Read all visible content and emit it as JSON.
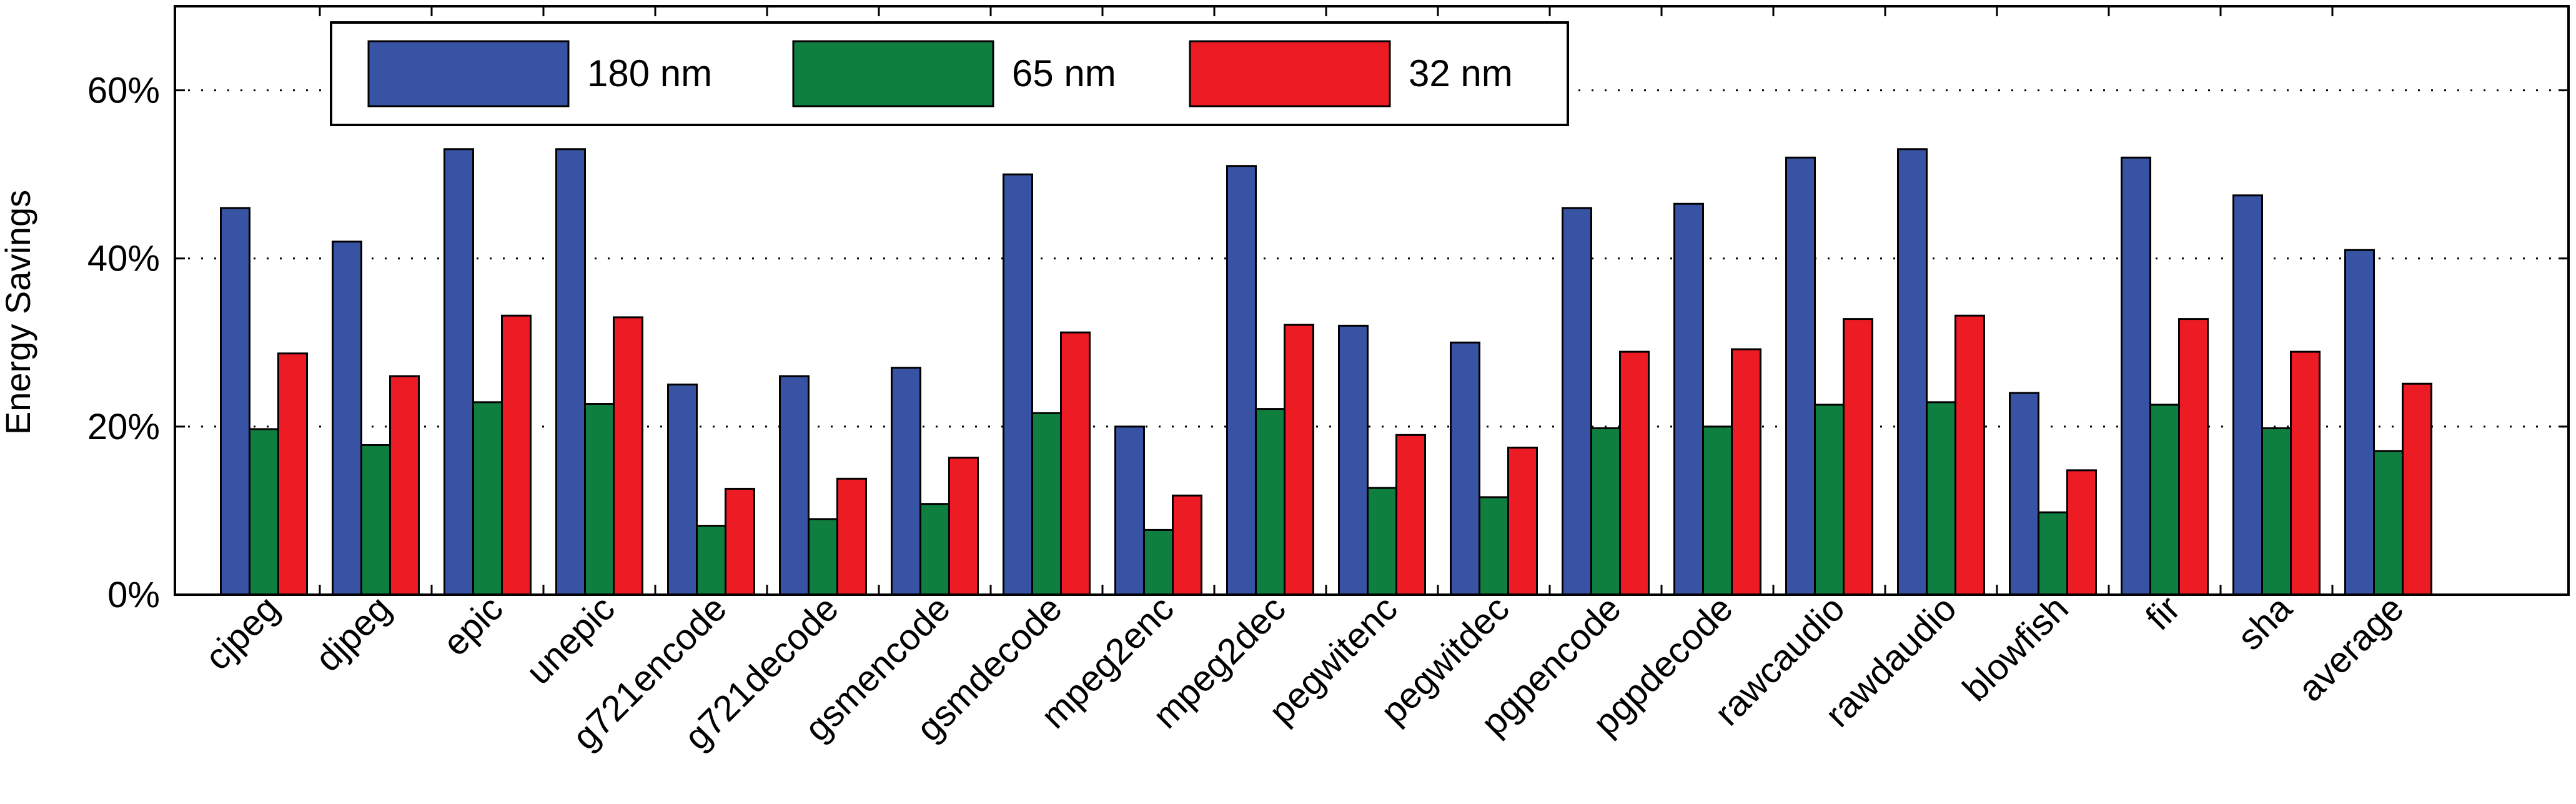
{
  "chart_data": {
    "type": "bar",
    "title": "",
    "xlabel": "",
    "ylabel": "Energy Savings",
    "ylim": [
      0,
      70
    ],
    "yticks": [
      0,
      20,
      40,
      60
    ],
    "ytick_labels": [
      "0%",
      "20%",
      "40%",
      "60%"
    ],
    "grid": "horizontal dotted",
    "legend_position": "top-left",
    "categories": [
      "cjpeg",
      "djpeg",
      "epic",
      "unepic",
      "g721encode",
      "g721decode",
      "gsmencode",
      "gsmdecode",
      "mpeg2enc",
      "mpeg2dec",
      "pegwitenc",
      "pegwitdec",
      "pgpencode",
      "pgpdecode",
      "rawcaudio",
      "rawdaudio",
      "blowfish",
      "fir",
      "sha",
      "average"
    ],
    "series": [
      {
        "name": "180 nm",
        "color": "#3953a4",
        "values": [
          46,
          42,
          53,
          53,
          25,
          26,
          27,
          50,
          20,
          51,
          32,
          30,
          46,
          46.5,
          52,
          53,
          24,
          52,
          47.5,
          41
        ]
      },
      {
        "name": "65 nm",
        "color": "#0f7f3f",
        "values": [
          19.7,
          17.8,
          22.9,
          22.7,
          8.2,
          9,
          10.8,
          21.6,
          7.7,
          22.1,
          12.7,
          11.6,
          19.8,
          20,
          22.6,
          22.9,
          9.8,
          22.6,
          19.8,
          17.1
        ]
      },
      {
        "name": "32 nm",
        "color": "#ed1c24",
        "values": [
          28.7,
          26,
          33.2,
          33,
          12.6,
          13.8,
          16.3,
          31.2,
          11.8,
          32.1,
          19,
          17.5,
          28.9,
          29.2,
          32.8,
          33.2,
          14.8,
          32.8,
          28.9,
          25.1
        ]
      }
    ]
  }
}
